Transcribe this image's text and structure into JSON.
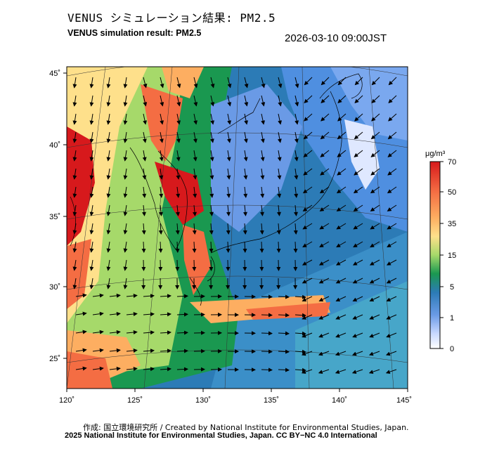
{
  "header": {
    "title_jp": "VENUS シミュレーション結果: PM2.5",
    "title_en": "VENUS simulation result: PM2.5",
    "timestamp": "2026-03-10 09:00JST"
  },
  "map": {
    "lon_ticks": [
      "120˚",
      "125˚",
      "130˚",
      "135˚",
      "140˚",
      "145˚"
    ],
    "lat_ticks": [
      "45˚",
      "40˚",
      "35˚",
      "30˚",
      "25˚"
    ],
    "extent": {
      "lon": [
        120,
        145
      ],
      "lat": [
        23,
        46
      ]
    }
  },
  "colorbar": {
    "unit": "μg/m³",
    "labels": [
      "70",
      "50",
      "35",
      "15",
      "5",
      "1",
      "0"
    ],
    "colors": [
      "#d7191c",
      "#f46d43",
      "#fdae61",
      "#fee08b",
      "#a6d96a",
      "#1a9850",
      "#2c7bb6",
      "#6a9ae6",
      "#c8d8ff",
      "#ffffff"
    ]
  },
  "footer": {
    "credit": "作成: 国立環境研究所 / Created by National Institute for Environmental Studies, Japan.",
    "copyright": "2025 National Institute for Environmental Studies, Japan. CC BY−NC 4.0 International"
  }
}
